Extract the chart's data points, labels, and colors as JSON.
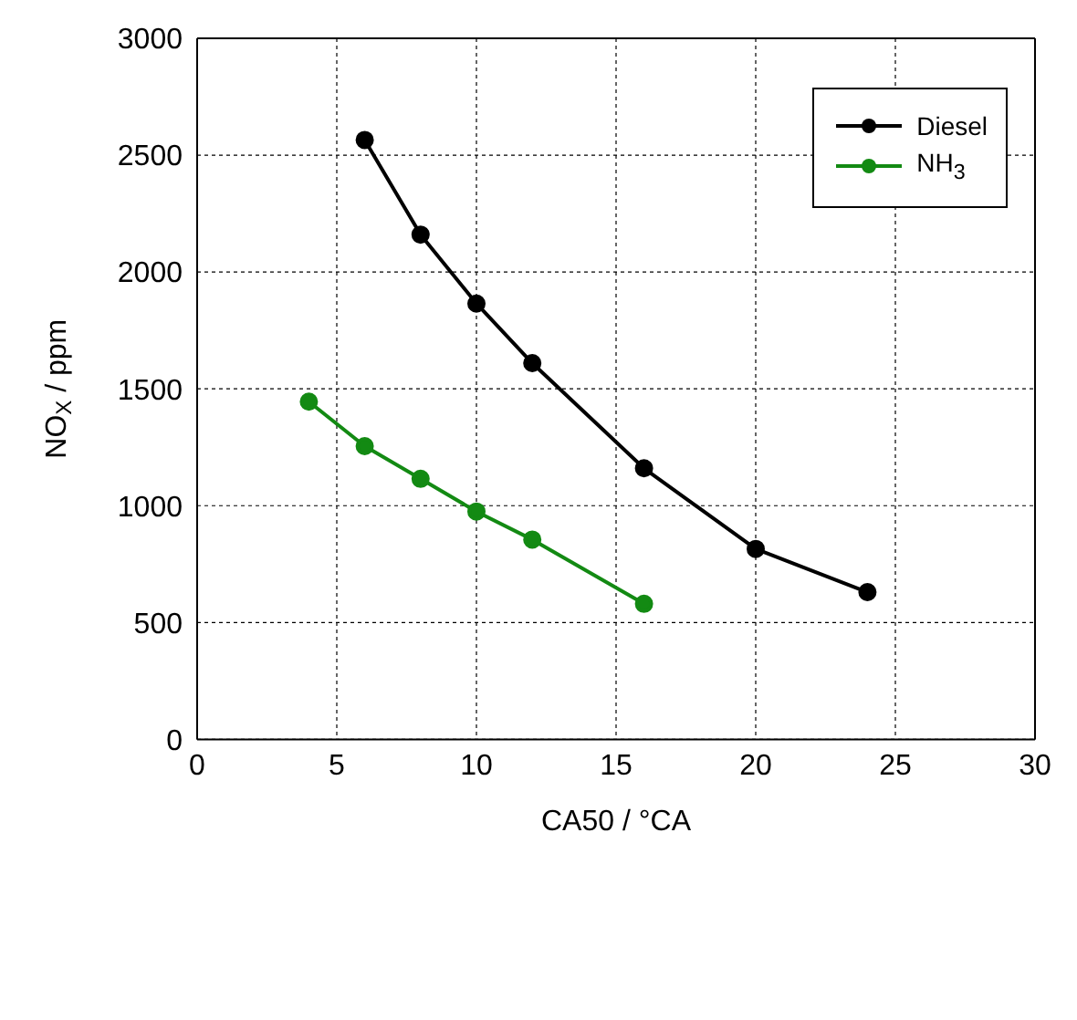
{
  "chart_data": {
    "type": "line",
    "xlabel": "CA50 / °CA",
    "ylabel": "NO$_{X}$ / ppm",
    "xlim": [
      0,
      30
    ],
    "xticks": [
      0,
      5,
      10,
      15,
      20,
      25,
      30
    ],
    "ylim": [
      0,
      3000
    ],
    "yticks": [
      0,
      500,
      1000,
      1500,
      2000,
      2500,
      3000
    ],
    "grid": true,
    "legend": "top right",
    "marker": "circle",
    "line_style": "solid",
    "series": [
      {
        "name": "Diesel",
        "color": "#000000",
        "x": [
          6,
          8,
          10,
          12,
          16,
          20,
          24
        ],
        "values": [
          2565,
          2160,
          1865,
          1610,
          1160,
          815,
          630
        ]
      },
      {
        "name": "NH$_{3}$",
        "color": "#138a13",
        "x": [
          4,
          6,
          8,
          10,
          12,
          16
        ],
        "values": [
          1445,
          1255,
          1115,
          975,
          855,
          580
        ]
      }
    ]
  }
}
